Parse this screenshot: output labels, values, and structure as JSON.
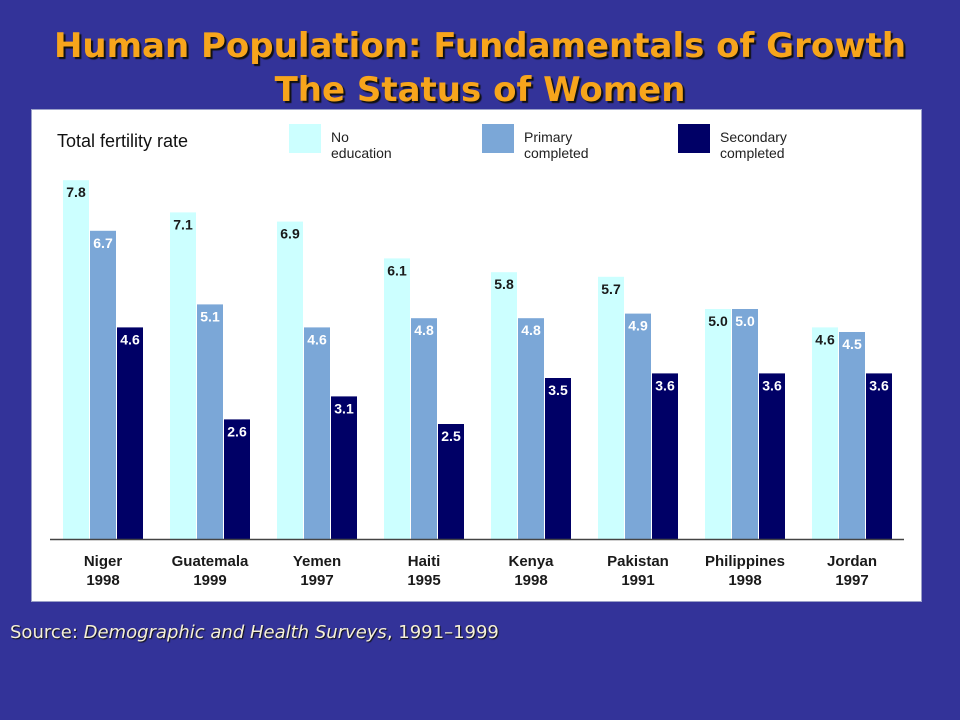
{
  "slide": {
    "title_line1": "Human Population: Fundamentals of Growth",
    "title_line2": "The Status of Women",
    "source_prefix": "Source: ",
    "source_title": "Demographic and Health Surveys",
    "source_suffix": ", 1991–1999"
  },
  "chart_data": {
    "type": "bar",
    "ylabel": "Total fertility rate",
    "ylim": [
      0,
      8
    ],
    "grid": false,
    "legend": "top",
    "categories": [
      {
        "country": "Niger",
        "year": "1998"
      },
      {
        "country": "Guatemala",
        "year": "1999"
      },
      {
        "country": "Yemen",
        "year": "1997"
      },
      {
        "country": "Haiti",
        "year": "1995"
      },
      {
        "country": "Kenya",
        "year": "1998"
      },
      {
        "country": "Pakistan",
        "year": "1991"
      },
      {
        "country": "Philippines",
        "year": "1998"
      },
      {
        "country": "Jordan",
        "year": "1997"
      }
    ],
    "series": [
      {
        "name": "No education",
        "legend_lines": [
          "No",
          "education"
        ],
        "color": "#ccffff",
        "label_color": "#1a1a1a",
        "values": [
          7.8,
          7.1,
          6.9,
          6.1,
          5.8,
          5.7,
          5.0,
          4.6
        ],
        "labels": [
          "7.8",
          "7.1",
          "6.9",
          "6.1",
          "5.8",
          "5.7",
          "5.0",
          "4.6"
        ]
      },
      {
        "name": "Primary completed",
        "legend_lines": [
          "Primary",
          "completed"
        ],
        "color": "#7ba7d7",
        "label_color": "#ffffff",
        "values": [
          6.7,
          5.1,
          4.6,
          4.8,
          4.8,
          4.9,
          5.0,
          4.5
        ],
        "labels": [
          "6.7",
          "5.1",
          "4.6",
          "4.8",
          "4.8",
          "4.9",
          "5.0",
          "4.5"
        ]
      },
      {
        "name": "Secondary completed",
        "legend_lines": [
          "Secondary",
          "completed"
        ],
        "color": "#000066",
        "label_color": "#ffffff",
        "values": [
          4.6,
          2.6,
          3.1,
          2.5,
          3.5,
          3.6,
          3.6,
          3.6
        ],
        "labels": [
          "4.6",
          "2.6",
          "3.1",
          "2.5",
          "3.5",
          "3.6",
          "3.6",
          "3.6"
        ]
      }
    ]
  }
}
